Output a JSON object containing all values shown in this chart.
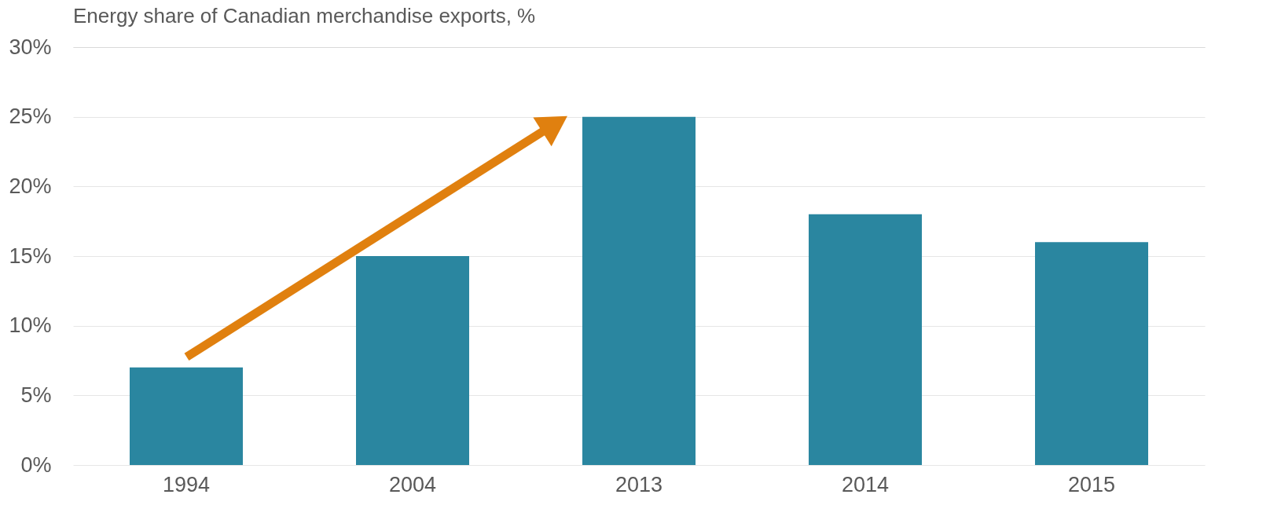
{
  "chart_data": {
    "type": "bar",
    "title": "Energy share of Canadian merchandise exports, %",
    "categories": [
      "1994",
      "2004",
      "2013",
      "2014",
      "2015"
    ],
    "values": [
      7,
      15,
      25,
      18,
      16
    ],
    "color": "#2a86a0",
    "ylim": [
      0,
      30
    ],
    "yticks": [
      {
        "value": 0,
        "label": "0%"
      },
      {
        "value": 5,
        "label": "5%"
      },
      {
        "value": 10,
        "label": "10%"
      },
      {
        "value": 15,
        "label": "15%"
      },
      {
        "value": 20,
        "label": "20%"
      },
      {
        "value": 25,
        "label": "25%"
      },
      {
        "value": 30,
        "label": "30%"
      }
    ],
    "grid": "y"
  }
}
